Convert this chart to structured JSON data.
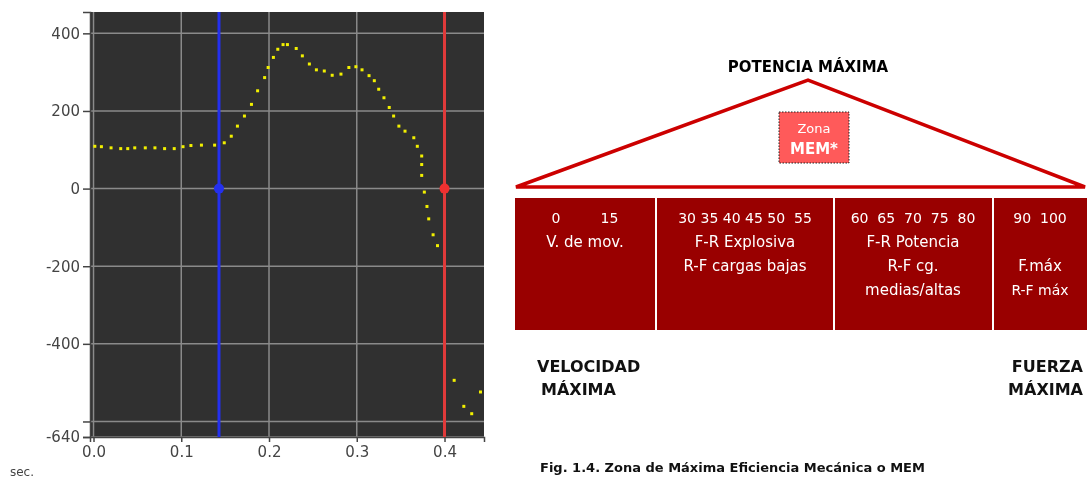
{
  "chart_data": [
    {
      "type": "scatter",
      "xlabel": "sec.",
      "xlim": [
        -0.004,
        0.445
      ],
      "ylim": [
        -640,
        455
      ],
      "xticks": [
        {
          "value": 0,
          "label": "0.0"
        },
        {
          "value": 0.1,
          "label": "0.1"
        },
        {
          "value": 0.2,
          "label": "0.2"
        },
        {
          "value": 0.3,
          "label": "0.3"
        },
        {
          "value": 0.4,
          "label": "0.4"
        }
      ],
      "yticks": [
        400,
        200,
        0,
        -200,
        -400,
        {
          "value": -600,
          "label": null
        },
        -640
      ],
      "grid": true,
      "marker": "square",
      "ref_lines": [
        {
          "axis": "x",
          "value": 0.143,
          "color": "#2430ee"
        },
        {
          "axis": "x",
          "value": 0.4,
          "color": "#e03a3a"
        }
      ],
      "series": [
        {
          "color": "#f2f000",
          "x": [
            0.0015,
            0.009,
            0.02,
            0.031,
            0.039,
            0.047,
            0.059,
            0.07,
            0.081,
            0.092,
            0.102,
            0.111,
            0.123,
            0.138,
            0.149,
            0.157,
            0.164,
            0.172,
            0.18,
            0.187,
            0.195,
            0.199,
            0.205,
            0.21,
            0.216,
            0.221,
            0.231,
            0.238,
            0.246,
            0.254,
            0.263,
            0.272,
            0.282,
            0.291,
            0.299,
            0.306,
            0.314,
            0.32,
            0.325,
            0.331,
            0.337,
            0.342,
            0.348,
            0.355,
            0.365,
            0.369,
            0.374,
            0.374,
            0.374,
            0.377,
            0.38,
            0.382,
            0.387,
            0.392,
            0.411,
            0.422,
            0.431,
            0.441
          ],
          "values": [
            109,
            108,
            105,
            103,
            103,
            105,
            105,
            105,
            103,
            103,
            108,
            111,
            112,
            112,
            118,
            135,
            161,
            187,
            217,
            252,
            286,
            312,
            338,
            359,
            371,
            371,
            361,
            342,
            321,
            306,
            303,
            292,
            295,
            312,
            314,
            306,
            291,
            278,
            256,
            234,
            209,
            187,
            161,
            148,
            131,
            109,
            84,
            62,
            34,
            -9,
            -46,
            -78,
            -119,
            -147,
            -494,
            -561,
            -580,
            -524
          ]
        },
        {
          "type": "scatter",
          "marker": "circle",
          "x": [
            0.143,
            0.4
          ],
          "values": [
            0,
            0
          ],
          "colors": [
            "#2430ee",
            "#f03030"
          ]
        }
      ]
    },
    {
      "type": "other",
      "title": "POTENCIA MÁXIMA",
      "annotations": [
        "Zona",
        "MEM*",
        "0         15",
        "V. de mov.",
        "30 35 40 45 50  55",
        "F-R Explosiva",
        "R-F cargas bajas",
        "60  65  70  75  80",
        "F-R Potencia",
        "R-F cg.",
        "medias/altas",
        "90  100",
        "F.máx",
        "R-F máx",
        "VELOCIDAD",
        "MÁXIMA",
        "FUERZA",
        "MÁXIMA",
        "Fig. 1.4. Zona de Máxima Eficiencia Mecánica o MEM"
      ]
    }
  ]
}
